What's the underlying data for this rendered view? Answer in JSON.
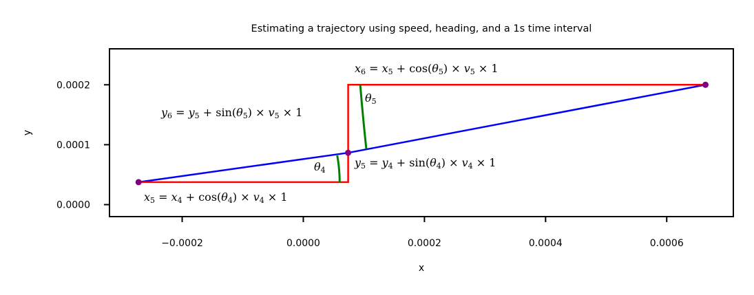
{
  "chart_data": {
    "type": "line",
    "title": "Estimating a trajectory using speed, heading, and a 1s time interval",
    "xlabel": "x",
    "ylabel": "y",
    "xlim": [
      -0.00032,
      0.00071
    ],
    "ylim": [
      -2e-05,
      0.00026
    ],
    "x_ticks": [
      -0.0002,
      0.0,
      0.0002,
      0.0004,
      0.0006
    ],
    "x_tick_labels": [
      "−0.0002",
      "0.0000",
      "0.0002",
      "0.0004",
      "0.0006"
    ],
    "y_ticks": [
      0.0,
      0.0001,
      0.0002
    ],
    "y_tick_labels": [
      "0.0000",
      "0.0001",
      "0.0002"
    ],
    "grid": false,
    "series": [
      {
        "role": "trajectory",
        "color": "#0000ff",
        "x": [
          -0.000272,
          7.4e-05,
          0.000664
        ],
        "y": [
          3.75e-05,
          8.65e-05,
          0.0002
        ]
      },
      {
        "role": "x-y-components",
        "color": "#ff0000",
        "x": [
          -0.000272,
          7.4e-05,
          7.4e-05,
          0.000664
        ],
        "y": [
          3.75e-05,
          3.75e-05,
          0.0002,
          0.0002
        ]
      }
    ],
    "points": {
      "color": "#800080",
      "x": [
        -0.000272,
        7.4e-05,
        0.000664
      ],
      "y": [
        3.75e-05,
        8.65e-05,
        0.0002
      ]
    },
    "angle_arcs": {
      "color": "#008000",
      "arcs": [
        {
          "x": [
            5.6e-05,
            6e-05,
            6e-05
          ],
          "y": [
            8.2e-05,
            6e-05,
            3.75e-05
          ]
        },
        {
          "x": [
            9.4e-05,
            9.8e-05,
            0.000104
          ],
          "y": [
            0.0002,
            0.00015,
            9.3e-05
          ]
        }
      ]
    },
    "annotations": [
      {
        "id": "x5",
        "text": "x5 = x4 + cos(θ4) × v4 × 1"
      },
      {
        "id": "y5",
        "text": "y5 = y4 + sin(θ4) × v4 × 1"
      },
      {
        "id": "x6",
        "text": "x6 = x5 + cos(θ5) × v5 × 1"
      },
      {
        "id": "y6",
        "text": "y6 = y5 + sin(θ5) × v5 × 1"
      },
      {
        "id": "theta4",
        "text": "θ4"
      },
      {
        "id": "theta5",
        "text": "θ5"
      }
    ]
  }
}
